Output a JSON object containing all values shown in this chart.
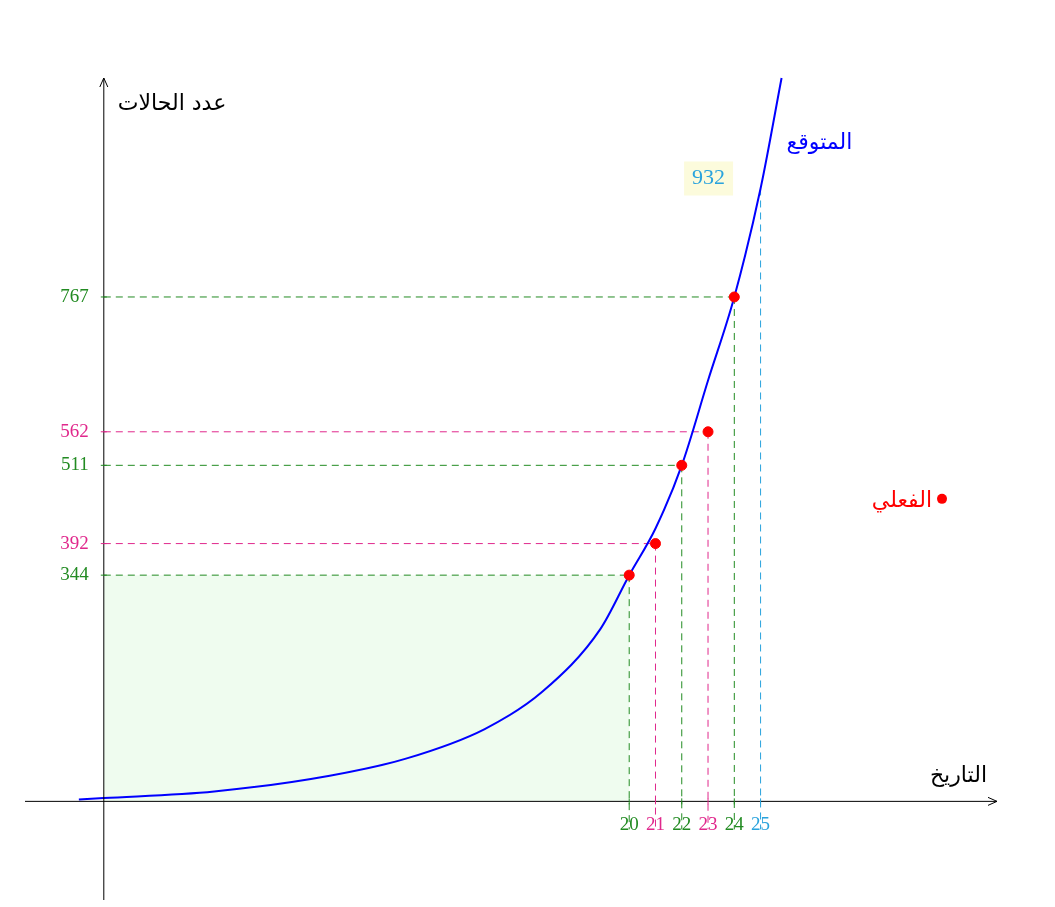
{
  "chart_data": {
    "type": "line",
    "xlabel": "التاريخ",
    "ylabel": "عدد الحالات",
    "xlim": [
      -3,
      34
    ],
    "ylim": [
      -150,
      1100
    ],
    "xticks": [
      20,
      21,
      22,
      23,
      24,
      25
    ],
    "yticks": [
      344,
      392,
      511,
      562,
      767
    ],
    "series": [
      {
        "name": "المتوقع",
        "color": "#0000ff",
        "x": [
          -0.95,
          0,
          4.2,
          8.6,
          11.5,
          14.5,
          16.7,
          18.9,
          20,
          21,
          22,
          23,
          24,
          25,
          25.8
        ],
        "values": [
          3,
          5,
          15,
          39,
          65,
          110,
          167,
          262,
          344,
          415,
          511,
          640,
          767,
          932,
          1100
        ]
      },
      {
        "name": "الفعلي",
        "type": "scatter",
        "color": "#ff0000",
        "marker": "circle",
        "x": [
          20,
          21,
          22,
          23,
          24
        ],
        "values": [
          344,
          392,
          511,
          562,
          767
        ]
      }
    ],
    "ref_lines": [
      {
        "axis": "x",
        "value": 20,
        "color": "#228b22",
        "line_style": "dashed"
      },
      {
        "axis": "x",
        "value": 21,
        "color": "#e0288c",
        "line_style": "dashed"
      },
      {
        "axis": "x",
        "value": 22,
        "color": "#228b22",
        "line_style": "dashed"
      },
      {
        "axis": "x",
        "value": 23,
        "color": "#e0288c",
        "line_style": "dashed"
      },
      {
        "axis": "x",
        "value": 24,
        "color": "#228b22",
        "line_style": "dashed"
      },
      {
        "axis": "x",
        "value": 25,
        "color": "#29a3dd",
        "line_style": "dashed"
      },
      {
        "axis": "y",
        "value": 344,
        "color": "#228b22",
        "line_style": "dashed"
      },
      {
        "axis": "y",
        "value": 392,
        "color": "#e0288c",
        "line_style": "dashed"
      },
      {
        "axis": "y",
        "value": 511,
        "color": "#228b22",
        "line_style": "dashed"
      },
      {
        "axis": "y",
        "value": 562,
        "color": "#e0288c",
        "line_style": "dashed"
      },
      {
        "axis": "y",
        "value": 767,
        "color": "#228b22",
        "line_style": "dashed"
      }
    ],
    "bands": [
      {
        "axis": "x",
        "from": 0,
        "to": 20,
        "color": "#effcef"
      }
    ],
    "annotations": [
      {
        "text": "932",
        "x": 25,
        "y": 932
      }
    ],
    "legend": "right"
  }
}
